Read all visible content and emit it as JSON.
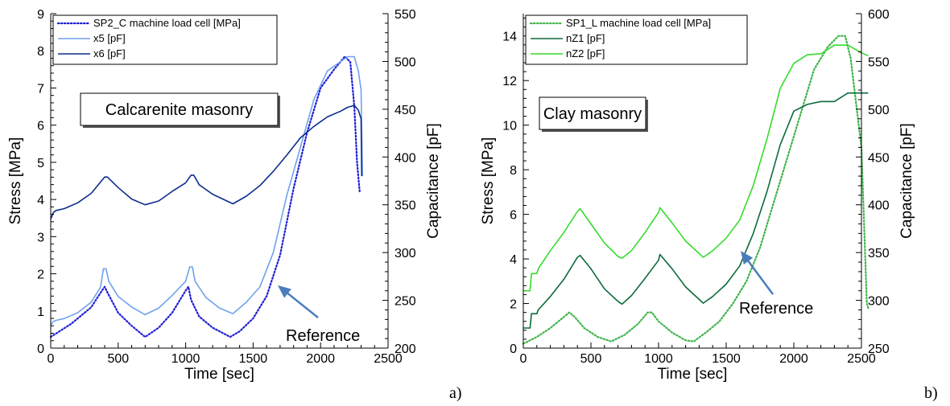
{
  "chart_data": [
    {
      "type": "line",
      "panel_label": "a)",
      "annotation_box": "Calcarenite masonry",
      "arrow_label": "Reference",
      "xlabel": "Time [sec]",
      "ylabel": "Stress [MPa]",
      "y2label": "Capacitance [pF]",
      "xlim": [
        0,
        2500
      ],
      "ylim": [
        0,
        9
      ],
      "y2lim": [
        200,
        550
      ],
      "xticks": [
        0,
        500,
        1000,
        1500,
        2000,
        2500
      ],
      "yticks": [
        0,
        1,
        2,
        3,
        4,
        5,
        6,
        7,
        8,
        9
      ],
      "y2ticks": [
        200,
        250,
        300,
        350,
        400,
        450,
        500,
        550
      ],
      "legend_position": "top-left",
      "series": [
        {
          "name": "SP2_C machine load cell [MPa]",
          "axis": "left",
          "style": "dotted",
          "color": "#1f1fd6",
          "x": [
            0,
            150,
            300,
            380,
            400,
            420,
            500,
            600,
            700,
            800,
            900,
            1000,
            1020,
            1040,
            1100,
            1200,
            1330,
            1400,
            1500,
            1600,
            1700,
            1800,
            1900,
            2000,
            2100,
            2180,
            2220,
            2250,
            2270,
            2290
          ],
          "y": [
            0.3,
            0.65,
            1.1,
            1.55,
            1.65,
            1.5,
            0.95,
            0.6,
            0.3,
            0.55,
            0.95,
            1.55,
            1.65,
            1.3,
            0.85,
            0.55,
            0.3,
            0.45,
            0.8,
            1.4,
            2.5,
            4.3,
            5.8,
            7.0,
            7.5,
            7.85,
            7.7,
            6.5,
            5.0,
            4.2
          ]
        },
        {
          "name": "x5 [pF]",
          "axis": "right",
          "style": "solid",
          "color": "#6fa2ec",
          "x": [
            0,
            20,
            40,
            100,
            200,
            300,
            370,
            390,
            410,
            430,
            500,
            600,
            700,
            800,
            900,
            1000,
            1030,
            1050,
            1070,
            1150,
            1250,
            1350,
            1450,
            1550,
            1650,
            1750,
            1850,
            1950,
            2050,
            2150,
            2200,
            2250,
            2280,
            2300,
            2310
          ],
          "y": [
            224,
            228,
            229,
            231,
            237,
            248,
            264,
            283,
            283,
            270,
            254,
            243,
            235,
            242,
            255,
            270,
            285,
            285,
            270,
            253,
            242,
            236,
            248,
            264,
            300,
            360,
            410,
            460,
            490,
            500,
            505,
            505,
            490,
            470,
            380
          ]
        },
        {
          "name": "x6 [pF]",
          "axis": "right",
          "style": "solid",
          "color": "#0d2d8c",
          "x": [
            0,
            20,
            40,
            100,
            200,
            300,
            400,
            420,
            500,
            600,
            700,
            800,
            900,
            1000,
            1040,
            1060,
            1100,
            1200,
            1350,
            1450,
            1550,
            1650,
            1750,
            1850,
            1950,
            2050,
            2150,
            2200,
            2250,
            2280,
            2300,
            2305
          ],
          "y": [
            335,
            342,
            344,
            346,
            352,
            362,
            379,
            379,
            368,
            356,
            350,
            354,
            364,
            373,
            381,
            381,
            371,
            361,
            351,
            359,
            370,
            385,
            402,
            420,
            432,
            442,
            448,
            452,
            454,
            449,
            440,
            380
          ]
        }
      ]
    },
    {
      "type": "line",
      "panel_label": "b)",
      "annotation_box": "Clay masonry",
      "arrow_label": "Reference",
      "xlabel": "Time [sec]",
      "ylabel": "Stress [MPa]",
      "y2label": "Capacitance [pF]",
      "xlim": [
        0,
        2500
      ],
      "ylim": [
        0,
        15
      ],
      "y2lim": [
        250,
        600
      ],
      "xticks": [
        0,
        500,
        1000,
        1500,
        2000,
        2500
      ],
      "yticks": [
        0,
        2,
        4,
        6,
        8,
        10,
        12,
        14
      ],
      "y2ticks": [
        250,
        300,
        350,
        400,
        450,
        500,
        550,
        600
      ],
      "legend_position": "top-left",
      "series": [
        {
          "name": "SP1_L machine load cell [MPa]",
          "axis": "left",
          "style": "dotted",
          "color": "#3fb54a",
          "x": [
            0,
            100,
            200,
            300,
            340,
            380,
            450,
            550,
            650,
            750,
            850,
            920,
            950,
            1000,
            1100,
            1200,
            1260,
            1350,
            1450,
            1550,
            1650,
            1750,
            1850,
            1950,
            2050,
            2150,
            2250,
            2330,
            2380,
            2420,
            2460,
            2500,
            2540,
            2550
          ],
          "y": [
            0.2,
            0.5,
            0.9,
            1.4,
            1.6,
            1.4,
            0.9,
            0.5,
            0.3,
            0.6,
            1.1,
            1.6,
            1.6,
            1.2,
            0.7,
            0.35,
            0.3,
            0.7,
            1.2,
            2.0,
            3.0,
            4.5,
            6.5,
            8.5,
            10.5,
            12.5,
            13.5,
            14.0,
            14.0,
            13.0,
            11.0,
            9.0,
            2.0,
            1.8
          ]
        },
        {
          "name": "nZ1 [pF]",
          "axis": "right",
          "style": "solid",
          "color": "#0b6b3a",
          "x": [
            0,
            50,
            60,
            100,
            110,
            200,
            300,
            400,
            420,
            500,
            600,
            700,
            730,
            800,
            900,
            1000,
            1010,
            1100,
            1200,
            1300,
            1330,
            1400,
            1500,
            1600,
            1700,
            1800,
            1900,
            2000,
            2100,
            2200,
            2300,
            2400,
            2550
          ],
          "y": [
            271,
            271,
            286,
            286,
            290,
            304,
            322,
            345,
            347,
            333,
            312,
            299,
            296,
            305,
            323,
            342,
            348,
            333,
            314,
            301,
            297,
            304,
            317,
            336,
            370,
            413,
            463,
            498,
            505,
            508,
            508,
            517,
            517
          ]
        },
        {
          "name": "nZ2 [pF]",
          "axis": "right",
          "style": "solid",
          "color": "#35dc2a",
          "x": [
            0,
            50,
            60,
            100,
            110,
            200,
            300,
            400,
            420,
            500,
            600,
            700,
            730,
            800,
            900,
            1000,
            1010,
            1100,
            1200,
            1300,
            1330,
            1400,
            1500,
            1600,
            1700,
            1800,
            1900,
            2000,
            2100,
            2200,
            2300,
            2400,
            2500,
            2550
          ],
          "y": [
            310,
            310,
            328,
            328,
            333,
            352,
            371,
            393,
            396,
            380,
            360,
            346,
            344,
            352,
            371,
            392,
            397,
            381,
            362,
            349,
            345,
            352,
            365,
            384,
            420,
            468,
            522,
            548,
            557,
            558,
            567,
            567,
            559,
            556
          ]
        }
      ]
    }
  ]
}
